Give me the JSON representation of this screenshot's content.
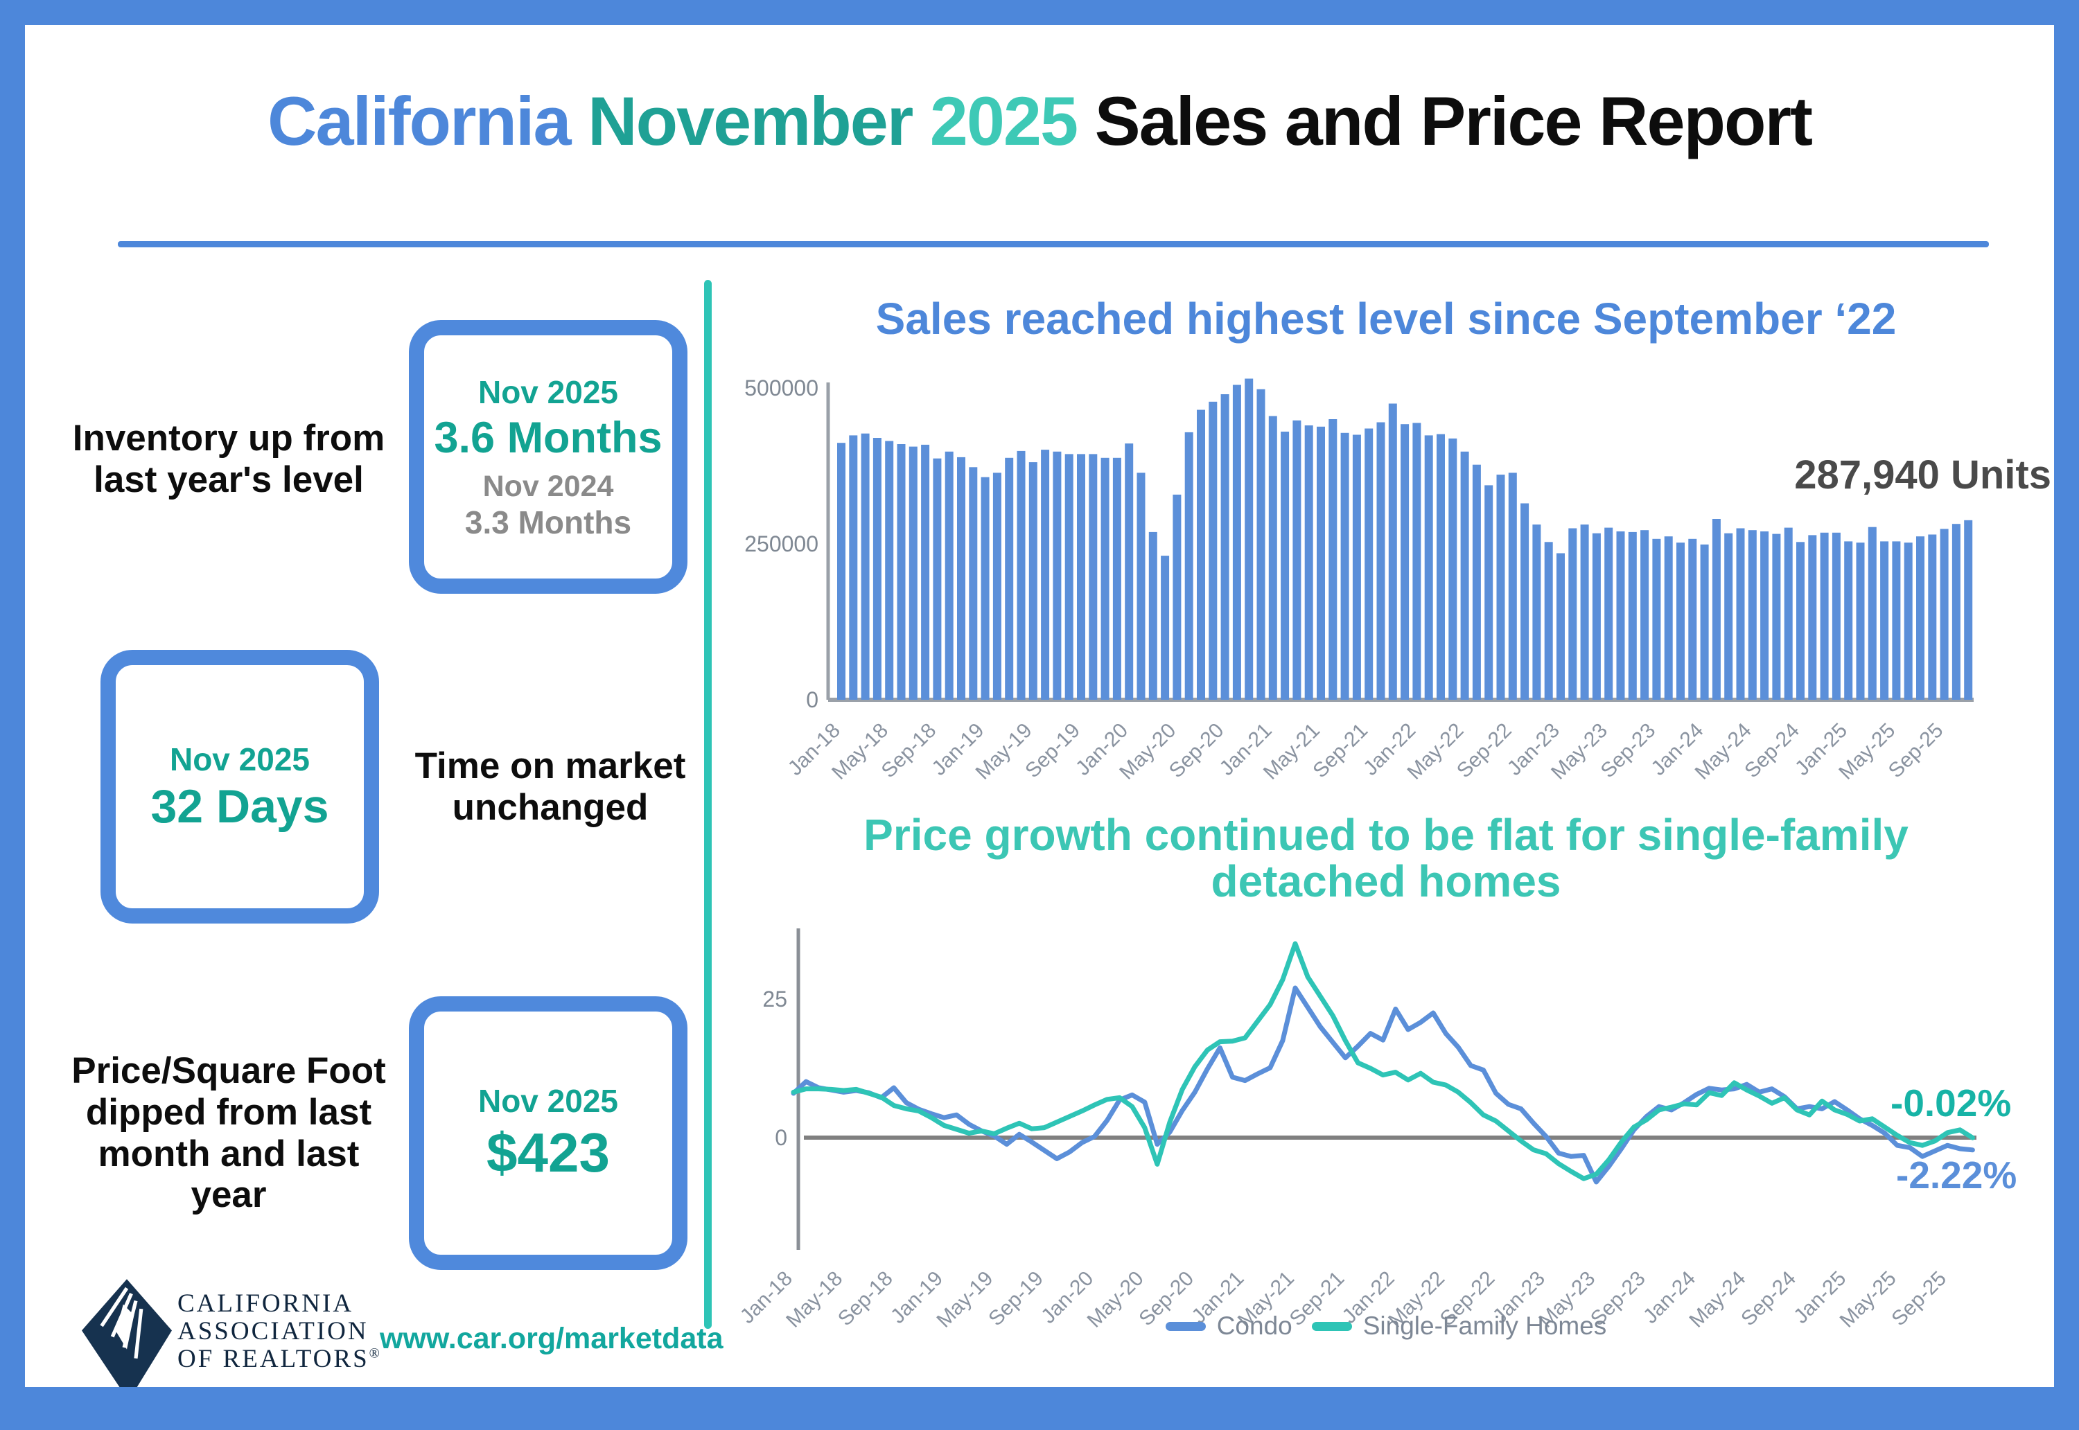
{
  "header": {
    "title_california": "California",
    "title_month": "November",
    "title_year": "2025",
    "title_rest": "Sales and Price Report"
  },
  "stats": {
    "inventory": {
      "label": "Inventory up from last year's level",
      "period": "Nov 2025",
      "value": "3.6 Months",
      "prev_period": "Nov 2024",
      "prev_value": "3.3 Months"
    },
    "days_on_market": {
      "period": "Nov 2025",
      "value": "32 Days",
      "label": "Time on market unchanged"
    },
    "price_per_sqft": {
      "label": "Price/Square Foot dipped from last month and last year",
      "period": "Nov 2025",
      "value": "$423"
    }
  },
  "footer": {
    "org_name": "CALIFORNIA\nASSOCIATION\nOF REALTORS",
    "org_reg_mark": "®",
    "url": "www.car.org/marketdata"
  },
  "colors": {
    "accent_blue": "#4d87da",
    "bar_blue": "#5b8fd9",
    "teal": "#12a392",
    "line_teal": "#2ec4b6",
    "divider_teal": "#2ec4b6",
    "gray_text": "#8a8a8a",
    "annotation_gray": "#4a4a4a"
  },
  "chart_data": [
    {
      "type": "bar",
      "title": "Sales reached highest level since September ‘22",
      "annotation": "287,940 Units",
      "start_month": "Jan-18",
      "end_month": "Nov-25",
      "ylim": [
        0,
        520000
      ],
      "yticks": [
        0,
        250000,
        500000
      ],
      "x_tick_labels": [
        "Jan-18",
        "May-18",
        "Sep-18",
        "Jan-19",
        "May-19",
        "Sep-19",
        "Jan-20",
        "May-20",
        "Sep-20",
        "Jan-21",
        "May-21",
        "Sep-21",
        "Jan-22",
        "May-22",
        "Sep-22",
        "Jan-23",
        "May-23",
        "Sep-23",
        "Jan-24",
        "May-24",
        "Sep-24",
        "Jan-25",
        "May-25",
        "Sep-25"
      ],
      "bar_color": "#5b8fd9",
      "values": [
        412000,
        424000,
        427000,
        420000,
        415000,
        410000,
        406000,
        409000,
        387000,
        398000,
        389000,
        373000,
        357000,
        364000,
        388000,
        399000,
        381000,
        401000,
        398000,
        394000,
        394000,
        394000,
        388000,
        388000,
        411000,
        364000,
        269000,
        231000,
        329000,
        429000,
        465000,
        478000,
        490000,
        505000,
        515000,
        498000,
        455000,
        430000,
        448000,
        440000,
        438000,
        450000,
        428000,
        425000,
        435000,
        445000,
        475000,
        442000,
        444000,
        424000,
        426000,
        419000,
        398000,
        377000,
        344000,
        361000,
        364000,
        315000,
        281000,
        253000,
        235000,
        275000,
        281000,
        267000,
        276000,
        270000,
        269000,
        272000,
        258000,
        262000,
        252000,
        258000,
        249000,
        290000,
        267000,
        275000,
        272000,
        270000,
        266000,
        276000,
        253000,
        264000,
        268000,
        268000,
        254000,
        252000,
        277000,
        254000,
        254000,
        252000,
        262000,
        265000,
        274000,
        282000,
        287940
      ]
    },
    {
      "type": "line",
      "title": "Price growth continued to be flat for single-family\ndetached homes",
      "start_month": "Jan-18",
      "end_month": "Nov-25",
      "yticks": [
        0,
        25
      ],
      "ylim": [
        -12,
        37
      ],
      "x_tick_labels": [
        "Jan-18",
        "May-18",
        "Sep-18",
        "Jan-19",
        "May-19",
        "Sep-19",
        "Jan-20",
        "May-20",
        "Sep-20",
        "Jan-21",
        "May-21",
        "Sep-21",
        "Jan-22",
        "May-22",
        "Sep-22",
        "Jan-23",
        "May-23",
        "Sep-23",
        "Jan-24",
        "May-24",
        "Sep-24",
        "Jan-25",
        "May-25",
        "Sep-25"
      ],
      "legend_position": "bottom",
      "series": [
        {
          "name": "Condo",
          "color": "#5b8fd9",
          "values": [
            8.0,
            10.1,
            9.0,
            8.6,
            8.2,
            8.5,
            8.1,
            7.2,
            9.0,
            6.3,
            5.1,
            4.3,
            3.6,
            4.1,
            2.4,
            1.2,
            0.3,
            -1.2,
            0.6,
            -0.8,
            -2.3,
            -3.8,
            -2.6,
            -0.9,
            0.2,
            3.1,
            6.8,
            7.7,
            6.4,
            -1.2,
            1.0,
            4.9,
            8.2,
            12.4,
            16.2,
            10.9,
            10.3,
            11.5,
            12.6,
            17.5,
            27.0,
            23.5,
            20.0,
            17.2,
            14.4,
            16.5,
            18.8,
            17.6,
            23.2,
            19.5,
            20.8,
            22.5,
            18.8,
            16.3,
            13.0,
            12.2,
            8.0,
            6.0,
            5.2,
            2.6,
            0.2,
            -2.8,
            -3.4,
            -3.2,
            -8.0,
            -5.2,
            -2.0,
            1.4,
            3.8,
            5.6,
            5.0,
            6.3,
            7.8,
            8.9,
            8.6,
            8.8,
            9.6,
            8.2,
            8.8,
            7.4,
            5.2,
            5.6,
            5.2,
            6.5,
            5.0,
            3.4,
            2.2,
            0.8,
            -1.4,
            -1.8,
            -3.4,
            -2.4,
            -1.4,
            -2.0,
            -2.22
          ]
        },
        {
          "name": "Single-Family Homes",
          "color": "#2ec4b6",
          "values": [
            8.2,
            8.8,
            8.8,
            8.7,
            8.5,
            8.7,
            8.0,
            7.3,
            5.8,
            5.2,
            4.8,
            3.6,
            2.2,
            1.5,
            0.8,
            1.2,
            0.7,
            1.7,
            2.6,
            1.6,
            1.8,
            2.8,
            3.8,
            4.8,
            5.9,
            6.9,
            7.2,
            5.6,
            1.8,
            -4.8,
            2.8,
            8.7,
            12.8,
            15.8,
            17.3,
            17.4,
            18.0,
            21.0,
            24.0,
            28.5,
            35.0,
            29.0,
            25.5,
            22.0,
            17.5,
            13.5,
            12.5,
            11.3,
            11.8,
            10.4,
            11.6,
            10.0,
            9.5,
            8.2,
            6.3,
            4.1,
            3.0,
            1.2,
            -0.6,
            -2.2,
            -2.9,
            -4.7,
            -6.1,
            -7.4,
            -6.6,
            -4.0,
            -0.8,
            1.9,
            3.2,
            5.0,
            5.5,
            6.1,
            5.9,
            8.1,
            7.6,
            9.9,
            8.6,
            7.5,
            6.2,
            7.2,
            5.0,
            4.1,
            6.6,
            5.0,
            4.2,
            3.0,
            3.4,
            1.9,
            0.4,
            -0.9,
            -1.4,
            -0.6,
            0.9,
            1.4,
            -0.02
          ]
        }
      ],
      "annotations": [
        {
          "text": "-0.02%",
          "color": "#17b3a6",
          "series": "Single-Family Homes"
        },
        {
          "text": "-2.22%",
          "color": "#5b8fd9",
          "series": "Condo"
        }
      ]
    }
  ]
}
